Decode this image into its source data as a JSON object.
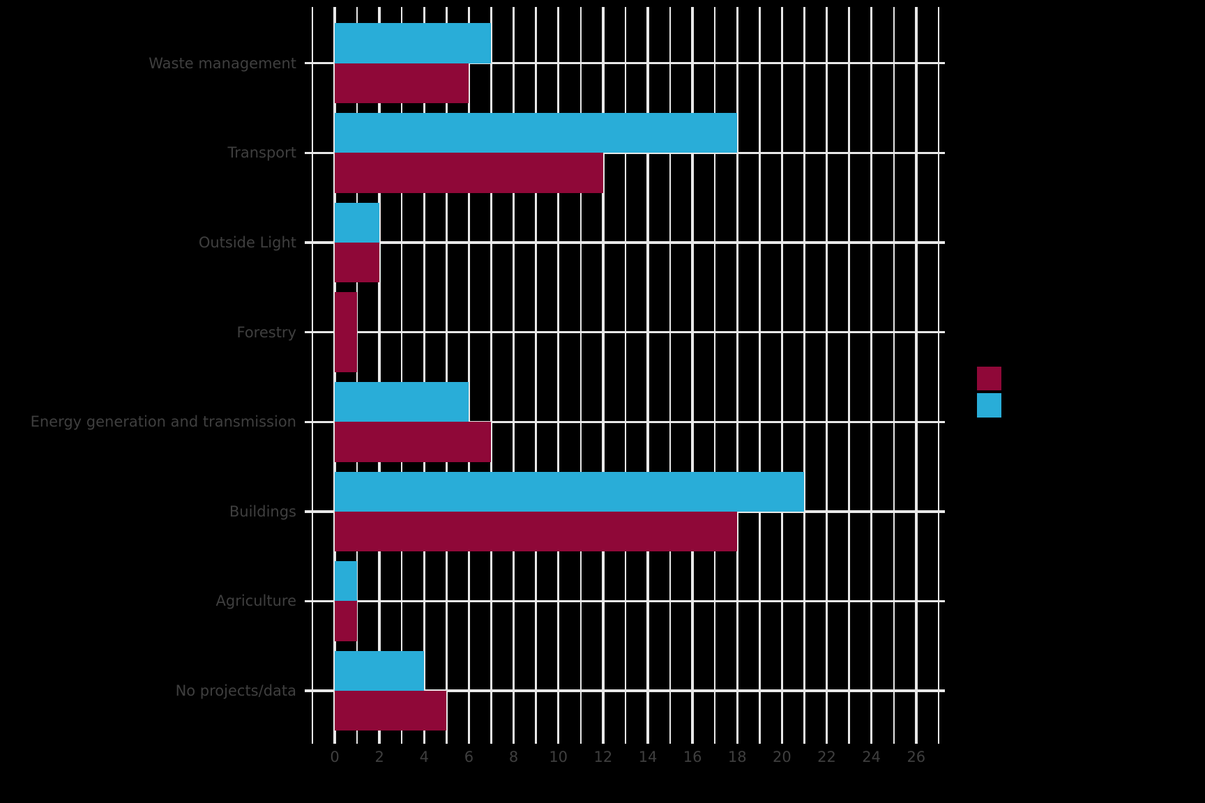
{
  "chart_data": {
    "type": "bar",
    "orientation": "horizontal",
    "title": "",
    "categories": [
      "Waste management",
      "Transport",
      "Outside Light",
      "Forestry",
      "Energy generation and transmission",
      "Buildings",
      "Agriculture",
      "No projects/data"
    ],
    "series": [
      {
        "label": "",
        "color": "#29ADD8",
        "row_position": "top",
        "values": [
          7,
          18,
          2,
          0,
          6,
          21,
          1,
          4
        ]
      },
      {
        "label": "",
        "color": "#8F0838",
        "row_position": "bottom",
        "values": [
          6,
          12,
          2,
          1,
          7,
          18,
          1,
          5
        ],
        "full_row_categories": [
          3
        ]
      }
    ],
    "xlabel": "",
    "ylabel": "",
    "x_ticks": [
      0,
      2,
      4,
      6,
      8,
      10,
      12,
      14,
      16,
      18,
      20,
      22,
      24,
      26
    ],
    "x_range": [
      -1,
      27
    ],
    "minor_grid_step": 1,
    "major_grid_step": 2,
    "grid": true,
    "legend": {
      "position": "right-middle",
      "swatch_colors": [
        "#8F0838",
        "#29ADD8"
      ],
      "labels_visible": false
    }
  },
  "styles": {
    "background": "#000000",
    "grid_color": "#E8E8E8",
    "text_color": "#3F3F3F"
  }
}
